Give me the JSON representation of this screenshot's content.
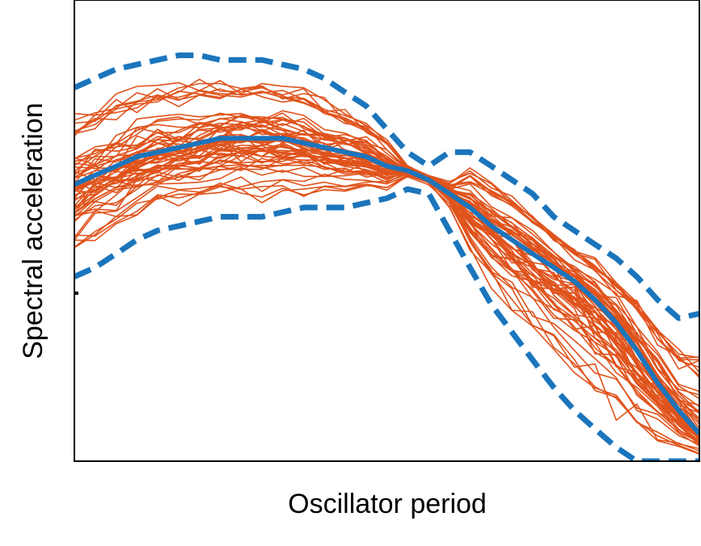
{
  "chart_data": {
    "type": "line",
    "title": "",
    "xlabel": "Oscillator period",
    "ylabel": "Spectral acceleration",
    "xlim": [
      0,
      1
    ],
    "ylim": [
      0,
      1
    ],
    "x_tick_labels": [],
    "y_tick_labels": [],
    "grid": false,
    "legend": "none",
    "colors": {
      "individual": "#E0531C",
      "median": "#1B75BC",
      "bounds": "#1B75BC",
      "frame": "#000000"
    },
    "x": [
      0.0,
      0.033,
      0.067,
      0.1,
      0.133,
      0.167,
      0.2,
      0.233,
      0.267,
      0.3,
      0.333,
      0.367,
      0.4,
      0.433,
      0.467,
      0.5,
      0.533,
      0.567,
      0.6,
      0.633,
      0.667,
      0.7,
      0.733,
      0.767,
      0.8,
      0.833,
      0.867,
      0.9,
      0.933,
      0.967,
      1.0
    ],
    "median": [
      0.6,
      0.62,
      0.64,
      0.66,
      0.67,
      0.68,
      0.69,
      0.7,
      0.7,
      0.7,
      0.7,
      0.69,
      0.68,
      0.67,
      0.66,
      0.64,
      0.63,
      0.61,
      0.58,
      0.55,
      0.51,
      0.48,
      0.45,
      0.42,
      0.39,
      0.35,
      0.3,
      0.24,
      0.17,
      0.11,
      0.06
    ],
    "upper_bound": [
      0.81,
      0.83,
      0.85,
      0.86,
      0.87,
      0.88,
      0.88,
      0.87,
      0.87,
      0.87,
      0.86,
      0.85,
      0.83,
      0.8,
      0.77,
      0.72,
      0.67,
      0.64,
      0.67,
      0.67,
      0.64,
      0.61,
      0.58,
      0.53,
      0.5,
      0.47,
      0.44,
      0.4,
      0.35,
      0.31,
      0.32
    ],
    "lower_bound": [
      0.4,
      0.42,
      0.45,
      0.48,
      0.5,
      0.51,
      0.52,
      0.53,
      0.53,
      0.53,
      0.54,
      0.55,
      0.55,
      0.55,
      0.56,
      0.57,
      0.59,
      0.58,
      0.5,
      0.42,
      0.34,
      0.28,
      0.22,
      0.16,
      0.11,
      0.07,
      0.03,
      0.0,
      0.0,
      0.0,
      0.0
    ],
    "individual_series_count": 60
  }
}
